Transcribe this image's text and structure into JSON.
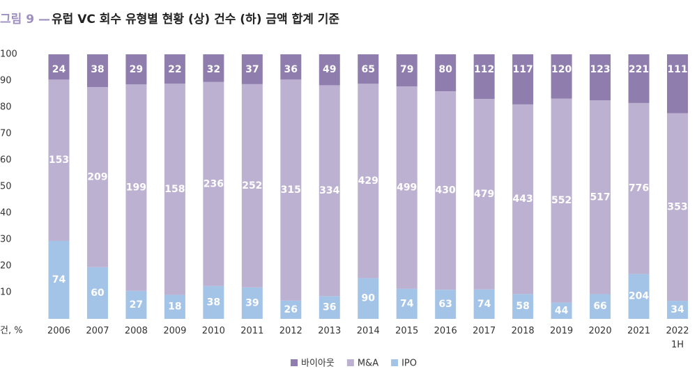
{
  "chart_data": {
    "type": "bar",
    "stacked": "percent",
    "figure_label": "그림 9 —",
    "title": "유럽 VC 회수 유형별 현황 (상) 건수 (하) 금액 합계 기준",
    "y_label": "건, %",
    "categories": [
      "2006",
      "2007",
      "2008",
      "2009",
      "2010",
      "2011",
      "2012",
      "2013",
      "2014",
      "2015",
      "2016",
      "2017",
      "2018",
      "2019",
      "2020",
      "2021",
      "2022 1H"
    ],
    "series": [
      {
        "name": "IPO",
        "color": "#a4c4e7",
        "values": [
          74,
          60,
          27,
          18,
          38,
          39,
          26,
          36,
          90,
          74,
          63,
          74,
          58,
          44,
          66,
          204,
          34
        ]
      },
      {
        "name": "M&A",
        "color": "#bdb1d2",
        "values": [
          153,
          209,
          199,
          158,
          236,
          252,
          315,
          334,
          429,
          499,
          430,
          479,
          443,
          552,
          517,
          776,
          353
        ]
      },
      {
        "name": "바이아웃",
        "color": "#8f7dae",
        "values": [
          24,
          38,
          29,
          22,
          32,
          37,
          36,
          49,
          65,
          79,
          80,
          112,
          117,
          120,
          123,
          221,
          111
        ]
      }
    ],
    "ylim": [
      0,
      100
    ],
    "yticks": [
      10,
      20,
      30,
      40,
      50,
      60,
      70,
      80,
      90,
      100
    ],
    "legend": "bottom"
  }
}
